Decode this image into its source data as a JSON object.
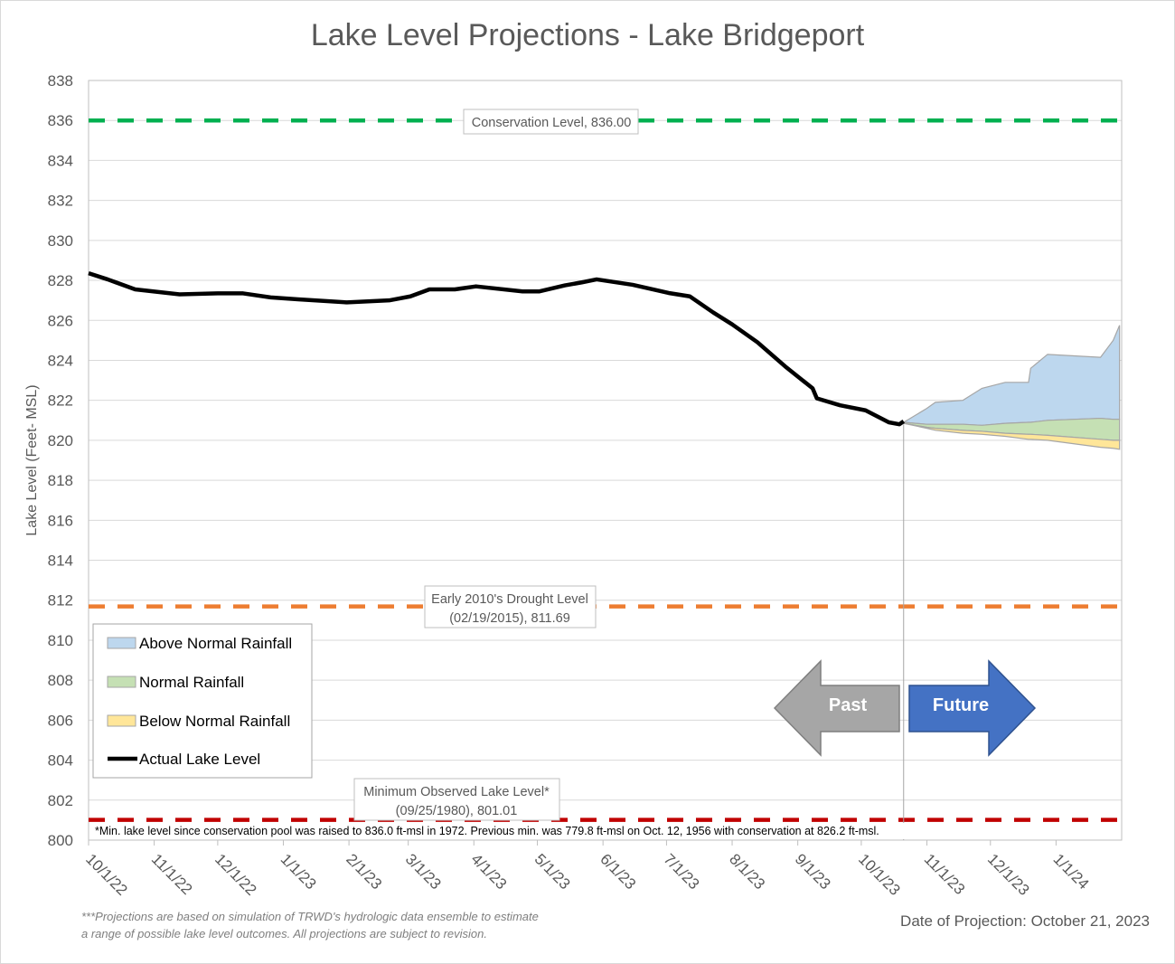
{
  "chart_data": {
    "type": "area",
    "title": "Lake Level Projections - Lake Bridgeport",
    "ylabel": "Lake Level (Feet- MSL)",
    "xlabel": "",
    "ylim": [
      800,
      838
    ],
    "yticks": [
      800,
      802,
      804,
      806,
      808,
      810,
      812,
      814,
      816,
      818,
      820,
      822,
      824,
      826,
      828,
      830,
      832,
      834,
      836,
      838
    ],
    "xlim": [
      "2022-10-01",
      "2024-02-01"
    ],
    "xticks": [
      "10/1/22",
      "11/1/22",
      "12/1/22",
      "1/1/23",
      "2/1/23",
      "3/1/23",
      "4/1/23",
      "5/1/23",
      "6/1/23",
      "7/1/23",
      "8/1/23",
      "9/1/23",
      "10/1/23",
      "11/1/23",
      "12/1/23",
      "1/1/24"
    ],
    "xtick_dates": [
      "2022-10-01",
      "2022-11-01",
      "2022-12-01",
      "2023-01-01",
      "2023-02-01",
      "2023-03-01",
      "2023-04-01",
      "2023-05-01",
      "2023-06-01",
      "2023-07-01",
      "2023-08-01",
      "2023-09-01",
      "2023-10-01",
      "2023-11-01",
      "2023-12-01",
      "2024-01-01"
    ],
    "grid": true,
    "legend_placement": "bottom-left",
    "legend": [
      {
        "label": "Above Normal Rainfall",
        "color": "#bdd7ee"
      },
      {
        "label": "Normal Rainfall",
        "color": "#c5e0b4"
      },
      {
        "label": "Below Normal Rainfall",
        "color": "#ffe699"
      },
      {
        "label": "Actual Lake Level",
        "color": "#000000"
      }
    ],
    "actual": {
      "name": "Actual Lake Level",
      "x": [
        "2022-10-01",
        "2022-10-10",
        "2022-10-23",
        "2022-11-13",
        "2022-12-01",
        "2022-12-13",
        "2022-12-26",
        "2023-01-08",
        "2023-01-31",
        "2023-02-20",
        "2023-03-02",
        "2023-03-11",
        "2023-03-23",
        "2023-04-02",
        "2023-04-24",
        "2023-05-02",
        "2023-05-14",
        "2023-05-22",
        "2023-05-29",
        "2023-06-15",
        "2023-07-02",
        "2023-07-12",
        "2023-07-23",
        "2023-08-01",
        "2023-08-13",
        "2023-08-26",
        "2023-09-08",
        "2023-09-10",
        "2023-09-21",
        "2023-10-03",
        "2023-10-14",
        "2023-10-19",
        "2023-10-21"
      ],
      "y": [
        828.36,
        828.05,
        827.55,
        827.3,
        827.35,
        827.35,
        827.15,
        827.05,
        826.9,
        827.0,
        827.2,
        827.55,
        827.55,
        827.7,
        827.45,
        827.45,
        827.75,
        827.9,
        828.05,
        827.78,
        827.37,
        827.2,
        826.4,
        825.8,
        824.9,
        823.7,
        822.6,
        822.1,
        821.75,
        821.5,
        820.9,
        820.8,
        820.95
      ]
    },
    "projection_x": [
      "2023-10-21",
      "2023-11-01",
      "2023-11-05",
      "2023-11-18",
      "2023-11-27",
      "2023-12-08",
      "2023-12-19",
      "2023-12-20",
      "2023-12-28",
      "2024-01-22",
      "2024-01-28",
      "2024-01-31"
    ],
    "bands": [
      {
        "name": "Above Normal Rainfall",
        "color": "#bdd7ee",
        "upper": [
          820.9,
          821.6,
          821.9,
          822.0,
          822.6,
          822.9,
          822.9,
          823.6,
          824.3,
          824.15,
          825.0,
          825.75
        ],
        "lower": [
          820.9,
          820.8,
          820.8,
          820.8,
          820.75,
          820.85,
          820.9,
          820.9,
          821.0,
          821.1,
          821.05,
          821.05
        ]
      },
      {
        "name": "Normal Rainfall",
        "color": "#c5e0b4",
        "upper": [
          820.9,
          820.8,
          820.8,
          820.8,
          820.75,
          820.85,
          820.9,
          820.9,
          821.0,
          821.1,
          821.05,
          821.05
        ],
        "lower": [
          820.85,
          820.65,
          820.6,
          820.5,
          820.45,
          820.35,
          820.3,
          820.3,
          820.25,
          820.05,
          820.0,
          820.0
        ]
      },
      {
        "name": "Below Normal Rainfall",
        "color": "#ffe699",
        "upper": [
          820.85,
          820.65,
          820.6,
          820.5,
          820.45,
          820.35,
          820.3,
          820.3,
          820.25,
          820.05,
          820.0,
          820.0
        ],
        "lower": [
          820.85,
          820.6,
          820.5,
          820.35,
          820.3,
          820.2,
          820.05,
          820.05,
          820.0,
          819.65,
          819.6,
          819.55
        ]
      }
    ],
    "reference_lines": [
      {
        "value": 836.0,
        "color": "#00b050",
        "label1": "Conservation Level, 836.00",
        "label2": ""
      },
      {
        "value": 811.69,
        "color": "#ed7d31",
        "label1": "Early 2010's Drought Level",
        "label2": "(02/19/2015), 811.69"
      },
      {
        "value": 801.01,
        "color": "#c00000",
        "label1": "Minimum Observed Lake Level*",
        "label2": "(09/25/1980), 801.01"
      }
    ],
    "projection_date": "2023-10-21"
  },
  "arrows": {
    "past": "Past",
    "future": "Future",
    "past_color": "#a6a6a6",
    "future_color": "#4472c4"
  },
  "footnote_min": "*Min. lake level since conservation pool was raised to 836.0 ft-msl in 1972.  Previous min. was 779.8 ft-msl on Oct. 12, 1956 with conservation at 826.2 ft-msl.",
  "disclaimer_line1": "***Projections are based on simulation of TRWD's hydrologic data ensemble to estimate",
  "disclaimer_line2": "a range of possible lake level outcomes.  All projections are subject to revision.",
  "projection_date_label": "Date of Projection: October 21, 2023"
}
